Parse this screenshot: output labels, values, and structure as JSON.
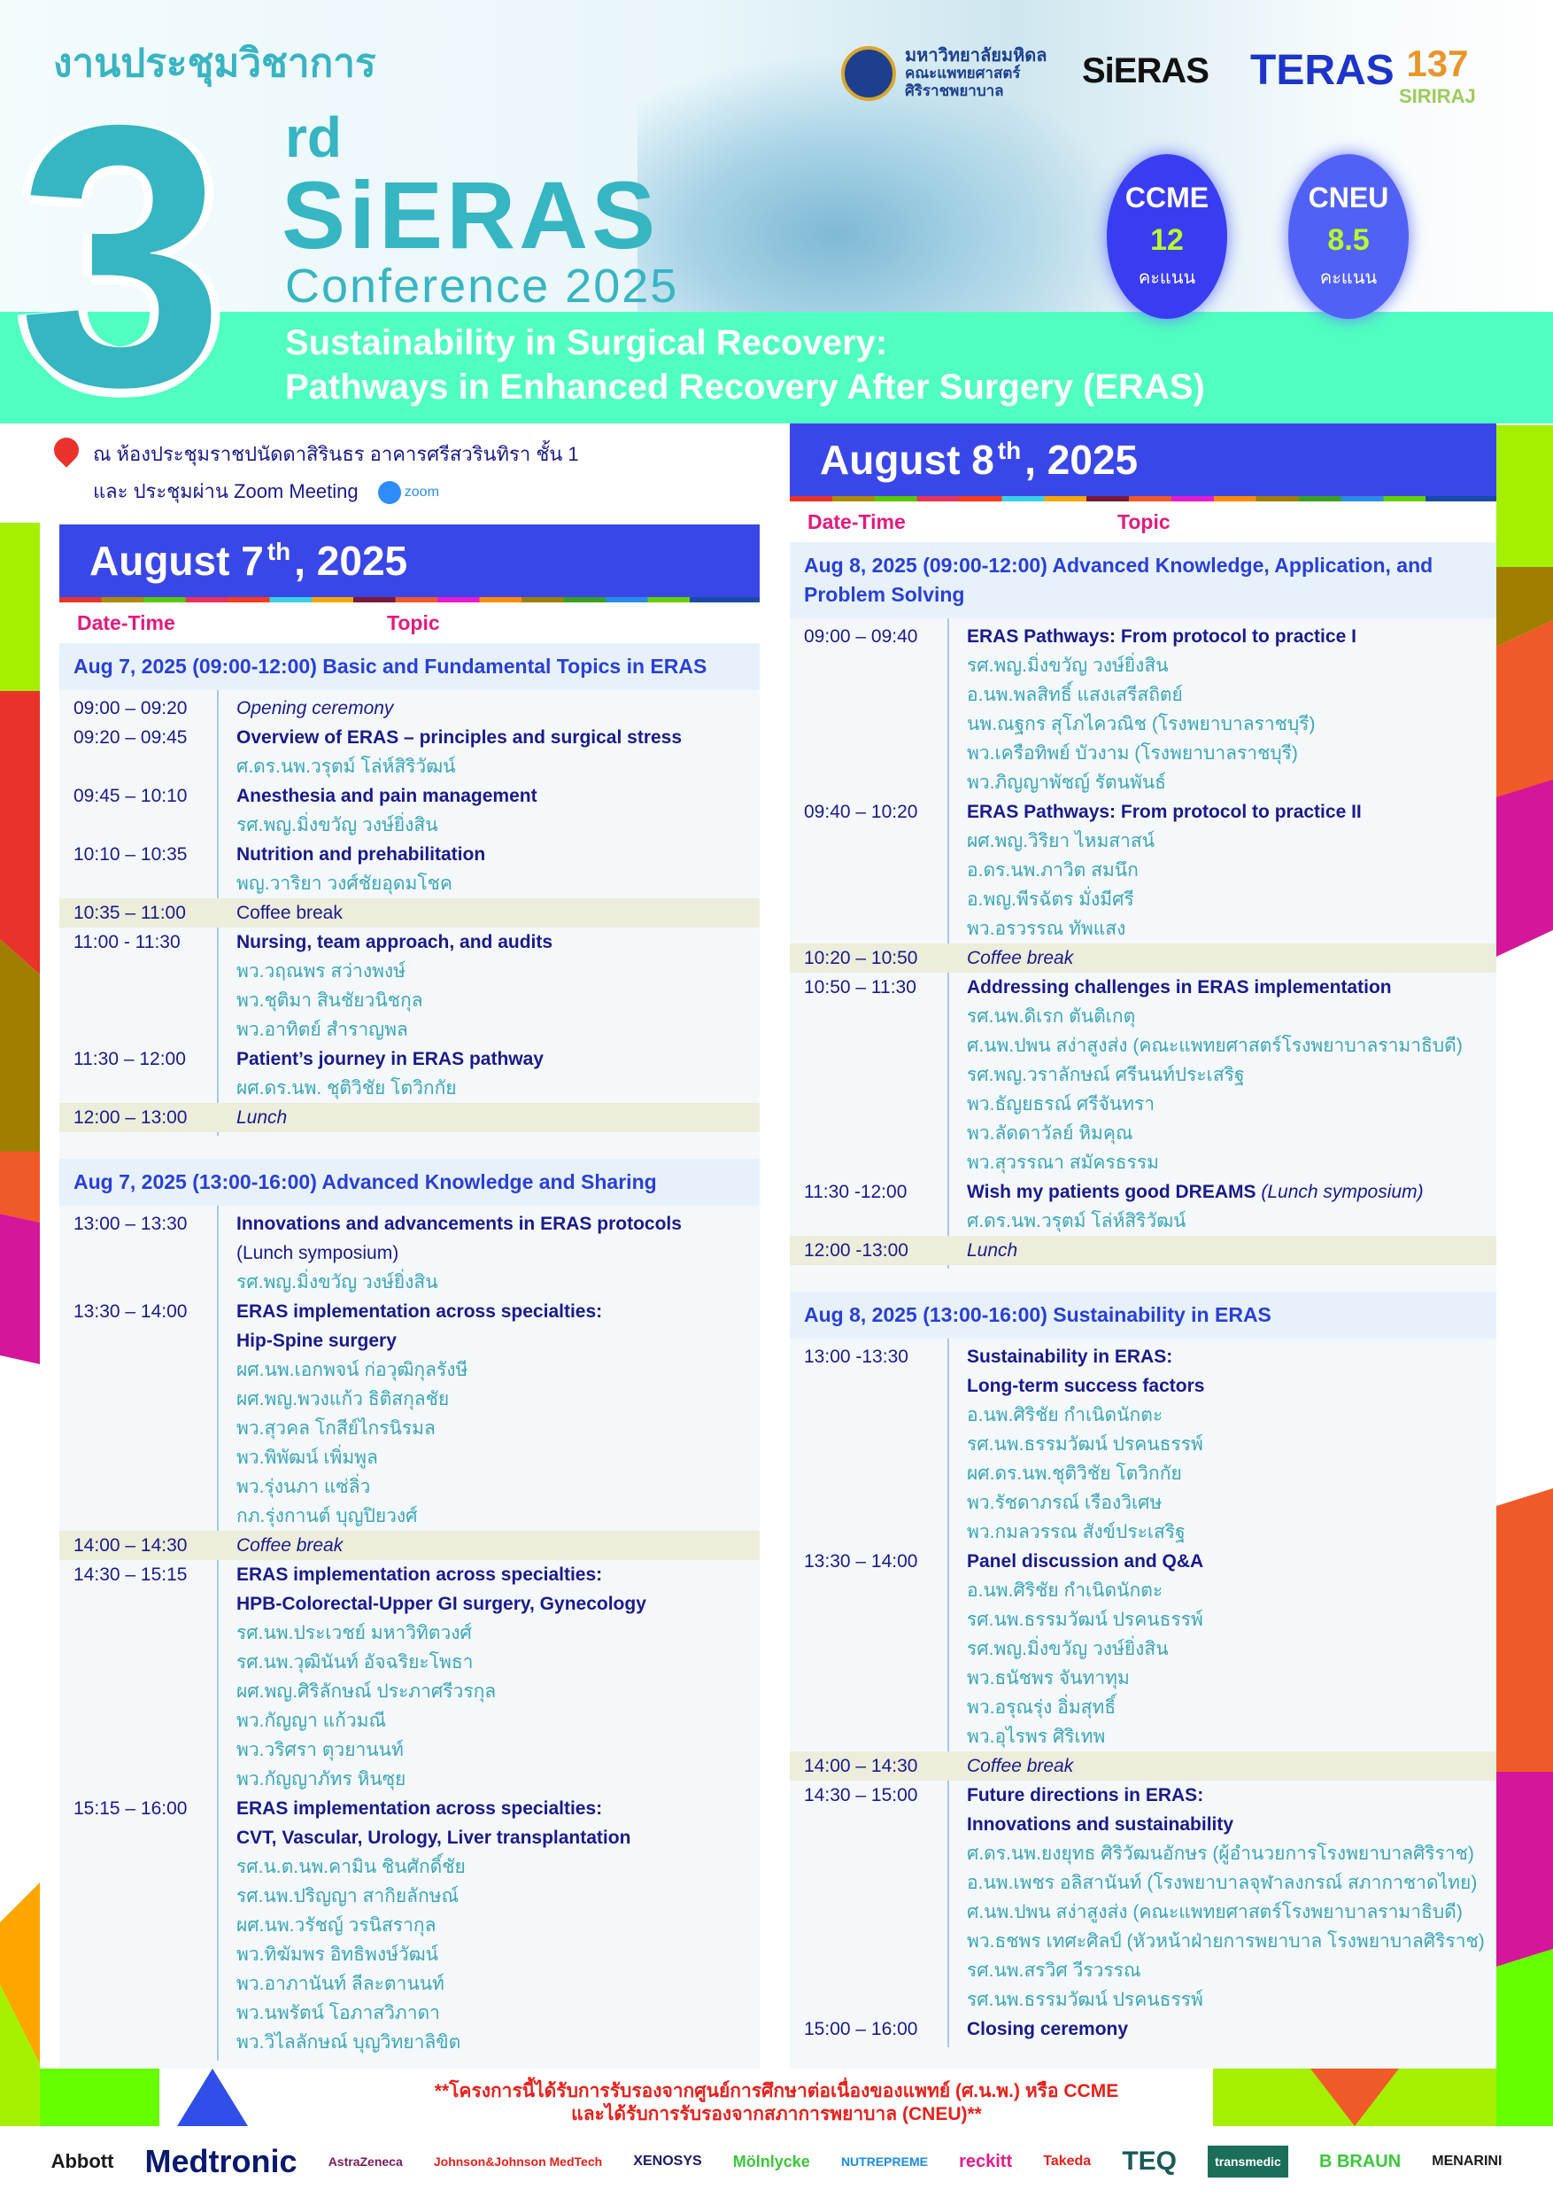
{
  "header": {
    "thai_title": "งานประชุมวิชาการ",
    "ordinal_number": "3",
    "ordinal_suffix": "rd",
    "name": "SiERAS",
    "conference": "Conference 2025",
    "theme_line1": "Sustainability in Surgical Recovery:",
    "theme_line2": "Pathways in Enhanced Recovery After Surgery (ERAS)"
  },
  "logos": {
    "mahidol": [
      "มหาวิทยาลัยมหิดล",
      "คณะแพทยศาสตร์",
      "ศิริราชพยาบาล"
    ],
    "sieras": "SiERAS",
    "teras": "TERAS",
    "siriraj_number": "137",
    "siriraj_name": "SIRIRAJ"
  },
  "credits": [
    {
      "name": "CCME",
      "value": "12",
      "unit": "คะแนน"
    },
    {
      "name": "CNEU",
      "value": "8.5",
      "unit": "คะแนน"
    }
  ],
  "venue": {
    "line1": "ณ ห้องประชุมราชปนัดดาสิรินธร อาคารศรีสวรินทิรา ชั้น 1",
    "line2": "และ ประชุมผ่าน Zoom Meeting",
    "zoom_label": "zoom"
  },
  "columns": {
    "date_time": "Date-Time",
    "topic": "Topic"
  },
  "colors": {
    "accent_blue": "#3a47e8",
    "teal": "#36b5c2",
    "mint": "#4fffbf",
    "navy": "#1a1a8c",
    "pink": "#e5197e",
    "speaker": "#3aa6b9"
  },
  "days": [
    {
      "date_prefix": "August 7",
      "date_sup": "th",
      "date_suffix": ", 2025",
      "sections": [
        {
          "title": "Aug 7, 2025 (09:00-12:00) Basic and Fundamental Topics in ERAS",
          "rows": [
            {
              "time": "09:00 – 09:20",
              "lines": [
                {
                  "text": "Opening ceremony",
                  "style": "title-italic"
                }
              ]
            },
            {
              "time": "09:20 – 09:45",
              "lines": [
                {
                  "text": "Overview of ERAS – principles and surgical stress",
                  "style": "title"
                },
                {
                  "text": "ศ.ดร.นพ.วรุตม์ โล่ห์สิริวัฒน์",
                  "style": "speaker"
                }
              ]
            },
            {
              "time": "09:45 – 10:10",
              "lines": [
                {
                  "text": "Anesthesia and pain management",
                  "style": "title"
                },
                {
                  "text": "รศ.พญ.มิ่งขวัญ วงษ์ยิ่งสิน",
                  "style": "speaker"
                }
              ]
            },
            {
              "time": "10:10 – 10:35",
              "lines": [
                {
                  "text": "Nutrition and prehabilitation",
                  "style": "title"
                },
                {
                  "text": "พญ.วาริยา วงศ์ชัยอุดมโชค",
                  "style": "speaker"
                }
              ]
            },
            {
              "time": "10:35 – 11:00",
              "break": true,
              "lines": [
                {
                  "text": "Coffee break",
                  "style": "break"
                }
              ]
            },
            {
              "time": "11:00 - 11:30",
              "lines": [
                {
                  "text": "Nursing, team approach, and audits",
                  "style": "title"
                },
                {
                  "text": "พว.วฤณพร สว่างพงษ์",
                  "style": "speaker"
                },
                {
                  "text": "พว.ชุติมา สินชัยวนิชกุล",
                  "style": "speaker"
                },
                {
                  "text": "พว.อาทิตย์ สำราญพล",
                  "style": "speaker"
                }
              ]
            },
            {
              "time": "11:30 – 12:00",
              "lines": [
                {
                  "text": "Patient’s journey in ERAS pathway",
                  "style": "title"
                },
                {
                  "text": "ผศ.ดร.นพ. ชุติวิชัย โตวิกกัย",
                  "style": "speaker"
                }
              ]
            },
            {
              "time": "12:00 – 13:00",
              "break": true,
              "lines": [
                {
                  "text": "Lunch",
                  "style": "break-italic"
                }
              ]
            }
          ]
        },
        {
          "title": "Aug 7, 2025 (13:00-16:00) Advanced Knowledge and Sharing",
          "rows": [
            {
              "time": "13:00 – 13:30",
              "lines": [
                {
                  "text": "Innovations and advancements in ERAS protocols",
                  "style": "title"
                },
                {
                  "text": "(Lunch symposium)",
                  "style": "sub"
                },
                {
                  "text": "รศ.พญ.มิ่งขวัญ วงษ์ยิ่งสิน",
                  "style": "speaker"
                }
              ]
            },
            {
              "time": "13:30 – 14:00",
              "lines": [
                {
                  "text": "ERAS implementation across specialties:",
                  "style": "title"
                },
                {
                  "text": "Hip-Spine surgery",
                  "style": "title"
                },
                {
                  "text": "ผศ.นพ.เอกพจน์ ก่อวุฒิกุลรังษี",
                  "style": "speaker"
                },
                {
                  "text": "ผศ.พญ.พวงแก้ว ธิติสกุลชัย",
                  "style": "speaker"
                },
                {
                  "text": "พว.สุวคล โกสีย์ไกรนิรมล",
                  "style": "speaker"
                },
                {
                  "text": "พว.พิพัฒน์ เพิ่มพูล",
                  "style": "speaker"
                },
                {
                  "text": "พว.รุ่งนภา แซ่ลิ่ว",
                  "style": "speaker"
                },
                {
                  "text": "กภ.รุ่งกานต์ บุญปิยวงศ์",
                  "style": "speaker"
                }
              ]
            },
            {
              "time": "14:00 – 14:30",
              "break": true,
              "lines": [
                {
                  "text": "Coffee break",
                  "style": "break-italic"
                }
              ]
            },
            {
              "time": "14:30 – 15:15",
              "lines": [
                {
                  "text": "ERAS implementation across specialties:",
                  "style": "title"
                },
                {
                  "text": "HPB-Colorectal-Upper GI surgery, Gynecology",
                  "style": "title"
                },
                {
                  "text": "รศ.นพ.ประเวชย์ มหาวิทิตวงศ์",
                  "style": "speaker"
                },
                {
                  "text": "รศ.นพ.วุฒินันท์ อัจฉริยะโพธา",
                  "style": "speaker"
                },
                {
                  "text": "ผศ.พญ.ศิริลักษณ์ ประภาศรีวรกุล",
                  "style": "speaker"
                },
                {
                  "text": "พว.กัญญา แก้วมณี",
                  "style": "speaker"
                },
                {
                  "text": "พว.วริศรา ตุวยานนท์",
                  "style": "speaker"
                },
                {
                  "text": "พว.กัญญาภัทร หินซุย",
                  "style": "speaker"
                }
              ]
            },
            {
              "time": "15:15 – 16:00",
              "lines": [
                {
                  "text": "ERAS implementation across specialties:",
                  "style": "title"
                },
                {
                  "text": "CVT, Vascular, Urology, Liver transplantation",
                  "style": "title"
                },
                {
                  "text": "รศ.น.ต.นพ.คามิน ชินศักดิ์ชัย",
                  "style": "speaker"
                },
                {
                  "text": "รศ.นพ.ปริญญา สากิยลักษณ์",
                  "style": "speaker"
                },
                {
                  "text": "ผศ.นพ.วรัชญ์ วรนิสรากุล",
                  "style": "speaker"
                },
                {
                  "text": "พว.ทิฆัมพร อิทธิพงษ์วัฒน์",
                  "style": "speaker"
                },
                {
                  "text": "พว.อาภานันท์ ลีละตานนท์",
                  "style": "speaker"
                },
                {
                  "text": "พว.นพรัตน์ โอภาสวิภาดา",
                  "style": "speaker"
                },
                {
                  "text": "พว.วิไลลักษณ์ บุญวิทยาลิขิต",
                  "style": "speaker"
                }
              ]
            }
          ]
        }
      ]
    },
    {
      "date_prefix": "August 8",
      "date_sup": "th",
      "date_suffix": ", 2025",
      "sections": [
        {
          "title": "Aug 8, 2025 (09:00-12:00) Advanced Knowledge, Application, and Problem Solving",
          "rows": [
            {
              "time": "09:00 – 09:40",
              "lines": [
                {
                  "text": "ERAS Pathways: From protocol to practice I",
                  "style": "title"
                },
                {
                  "text": "รศ.พญ.มิ่งขวัญ วงษ์ยิ่งสิน",
                  "style": "speaker"
                },
                {
                  "text": "อ.นพ.พลสิทธิ์ แสงเสรีสถิตย์",
                  "style": "speaker"
                },
                {
                  "text": "นพ.ณฐกร สุโภไควณิช (โรงพยาบาลราชบุรี)",
                  "style": "speaker"
                },
                {
                  "text": "พว.เครือทิพย์ บัวงาม  (โรงพยาบาลราชบุรี)",
                  "style": "speaker"
                },
                {
                  "text": "พว.ภิญญาพัชญ์ รัตนพันธ์",
                  "style": "speaker"
                }
              ]
            },
            {
              "time": "09:40 – 10:20",
              "lines": [
                {
                  "text": "ERAS Pathways: From protocol to practice II",
                  "style": "title"
                },
                {
                  "text": "ผศ.พญ.วิริยา ไหมสาสน์",
                  "style": "speaker"
                },
                {
                  "text": "อ.ดร.นพ.ภาวิต สมนึก",
                  "style": "speaker"
                },
                {
                  "text": "อ.พญ.พีรฉัตร มั่งมีศรี",
                  "style": "speaker"
                },
                {
                  "text": "พว.อรวรรณ ทัพแสง",
                  "style": "speaker"
                }
              ]
            },
            {
              "time": "10:20 – 10:50",
              "break": true,
              "lines": [
                {
                  "text": "Coffee break",
                  "style": "break-italic"
                }
              ]
            },
            {
              "time": "10:50 – 11:30",
              "lines": [
                {
                  "text": "Addressing challenges in ERAS implementation",
                  "style": "title"
                },
                {
                  "text": "รศ.นพ.ดิเรก ตันติเกตุ",
                  "style": "speaker"
                },
                {
                  "text": "ศ.นพ.ปพน สง่าสูงส่ง (คณะแพทยศาสตร์โรงพยาบาลรามาธิบดี)",
                  "style": "speaker"
                },
                {
                  "text": "รศ.พญ.วราลักษณ์ ศรีนนท์ประเสริฐ",
                  "style": "speaker"
                },
                {
                  "text": "พว.ธัญยธรณ์ ศรีจันทรา",
                  "style": "speaker"
                },
                {
                  "text": "พว.ลัดดาวัลย์ หิมคุณ",
                  "style": "speaker"
                },
                {
                  "text": "พว.สุวรรณา สมัครธรรม",
                  "style": "speaker"
                }
              ]
            },
            {
              "time": "11:30 -12:00",
              "lines": [
                {
                  "text": "Wish my patients good DREAMS ",
                  "italic_suffix": "(Lunch symposium)",
                  "style": "title"
                },
                {
                  "text": "ศ.ดร.นพ.วรุตม์ โล่ห์สิริวัฒน์",
                  "style": "speaker"
                }
              ]
            },
            {
              "time": "12:00 -13:00",
              "break": true,
              "lines": [
                {
                  "text": "Lunch",
                  "style": "break-italic"
                }
              ]
            }
          ]
        },
        {
          "title": "Aug 8, 2025 (13:00-16:00) Sustainability in ERAS",
          "rows": [
            {
              "time": "13:00 -13:30",
              "lines": [
                {
                  "text": "Sustainability in ERAS:",
                  "style": "title"
                },
                {
                  "text": "Long-term success factors",
                  "style": "title"
                },
                {
                  "text": "อ.นพ.ศิริชัย กำเนิดนักตะ",
                  "style": "speaker"
                },
                {
                  "text": "รศ.นพ.ธรรมวัฒน์ ปรคนธรรพ์",
                  "style": "speaker"
                },
                {
                  "text": "ผศ.ดร.นพ.ชุติวิชัย โตวิกกัย",
                  "style": "speaker"
                },
                {
                  "text": "พว.รัชดาภรณ์ เรืองวิเศษ",
                  "style": "speaker"
                },
                {
                  "text": "พว.กมลวรรณ สังข์ประเสริฐ",
                  "style": "speaker"
                }
              ]
            },
            {
              "time": "13:30 – 14:00",
              "lines": [
                {
                  "text": "Panel discussion and Q&A",
                  "style": "title"
                },
                {
                  "text": "อ.นพ.ศิริชัย กำเนิดนักตะ",
                  "style": "speaker"
                },
                {
                  "text": "รศ.นพ.ธรรมวัฒน์ ปรคนธรรพ์",
                  "style": "speaker"
                },
                {
                  "text": "รศ.พญ.มิ่งขวัญ วงษ์ยิ่งสิน",
                  "style": "speaker"
                },
                {
                  "text": "พว.ธนัชพร จันทาทุม",
                  "style": "speaker"
                },
                {
                  "text": "พว.อรุณรุ่ง อิ่มสุทธิ์",
                  "style": "speaker"
                },
                {
                  "text": "พว.อุไรพร ศิริเทพ",
                  "style": "speaker"
                }
              ]
            },
            {
              "time": "14:00 – 14:30",
              "break": true,
              "lines": [
                {
                  "text": "Coffee break",
                  "style": "break-italic"
                }
              ]
            },
            {
              "time": "14:30 – 15:00",
              "lines": [
                {
                  "text": "Future directions in ERAS:",
                  "style": "title"
                },
                {
                  "text": "Innovations and sustainability",
                  "style": "title"
                },
                {
                  "text": "ศ.ดร.นพ.ยงยุทธ ศิริวัฒนอักษร (ผู้อำนวยการโรงพยาบาลศิริราช)",
                  "style": "speaker"
                },
                {
                  "text": "อ.นพ.เพชร อลิสานันท์ (โรงพยาบาลจุฬาลงกรณ์ สภากาชาดไทย)",
                  "style": "speaker"
                },
                {
                  "text": "ศ.นพ.ปพน สง่าสูงส่ง (คณะแพทยศาสตร์โรงพยาบาลรามาธิบดี)",
                  "style": "speaker"
                },
                {
                  "text": "พว.ธชพร เทศะศิลป์ (หัวหน้าฝ่ายการพยาบาล โรงพยาบาลศิริราช)",
                  "style": "speaker"
                },
                {
                  "text": "รศ.นพ.สรวิศ วีรวรรณ",
                  "style": "speaker"
                },
                {
                  "text": "รศ.นพ.ธรรมวัฒน์ ปรคนธรรพ์",
                  "style": "speaker"
                }
              ]
            },
            {
              "time": "15:00 – 16:00",
              "lines": [
                {
                  "text": "Closing ceremony",
                  "style": "title"
                }
              ]
            }
          ]
        }
      ]
    }
  ],
  "footer": {
    "note_line1": "**โครงการนี้ได้รับการรับรองจากศูนย์การศึกษาต่อเนื่องของแพทย์ (ศ.น.พ.) หรือ CCME",
    "note_line2": "และได้รับการรับรองจากสภาการพยาบาล (CNEU)**",
    "sponsors": [
      "Abbott",
      "Medtronic",
      "AstraZeneca",
      "Johnson&Johnson MedTech",
      "XENOSYS",
      "Mölnlycke",
      "NUTREPREME",
      "reckitt",
      "Takeda",
      "TEQ",
      "transmedic",
      "B BRAUN",
      "MENARINI"
    ]
  }
}
